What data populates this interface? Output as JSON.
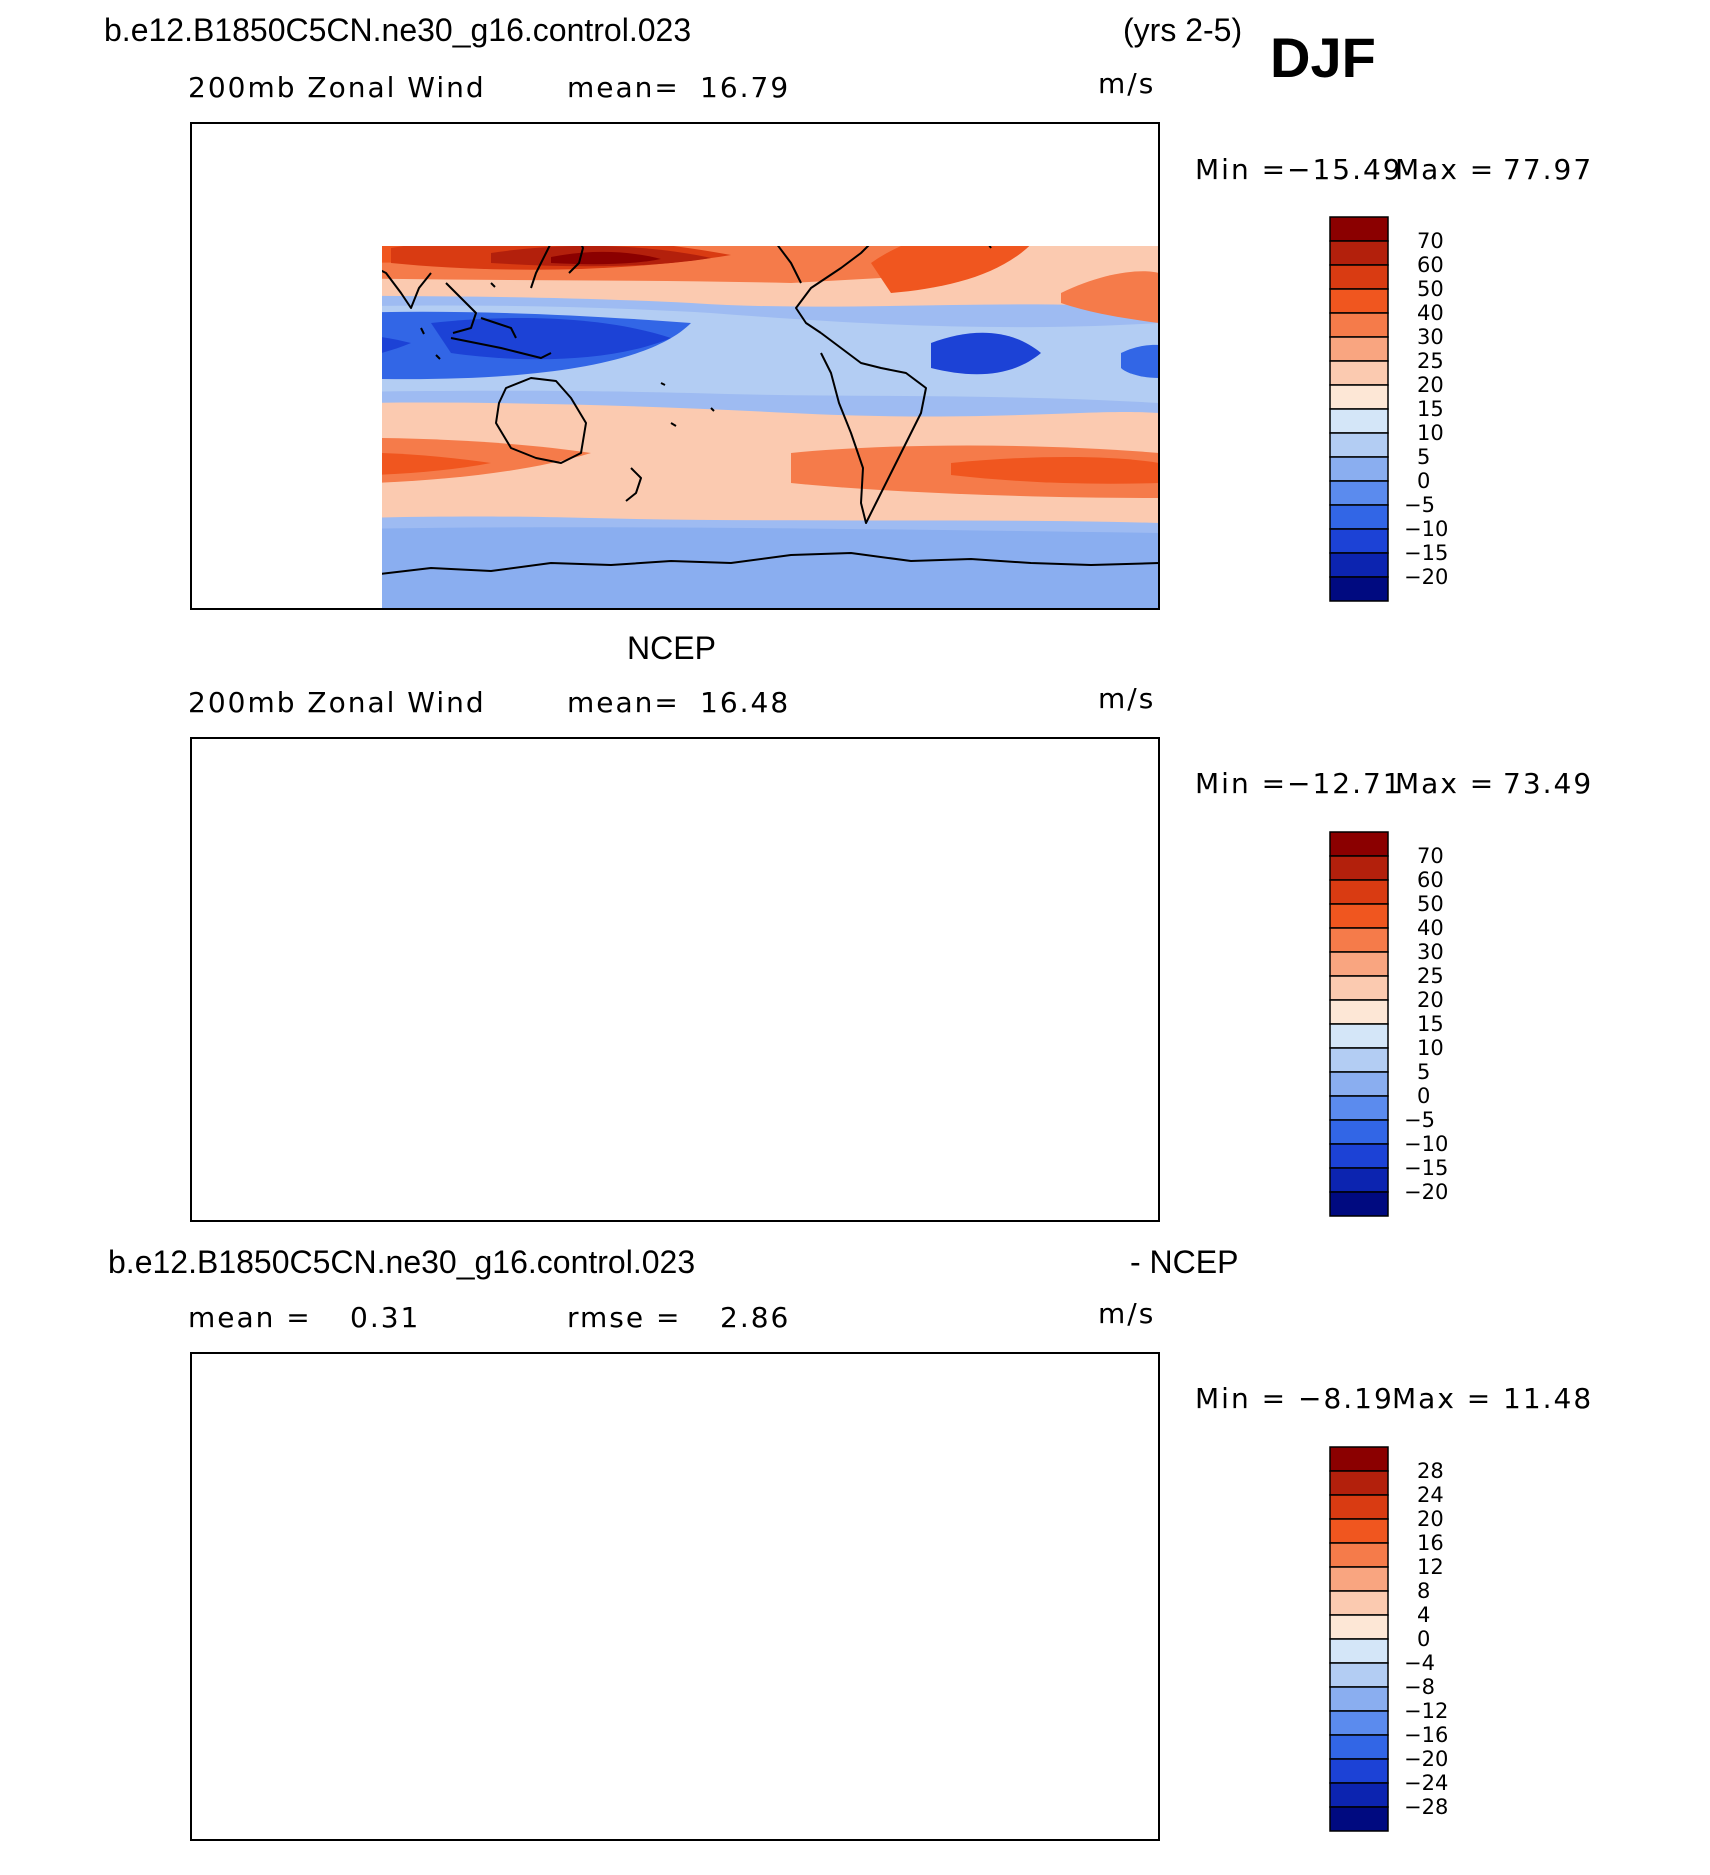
{
  "header": {
    "case_name": "b.e12.B1850C5CN.ne30_g16.control.023",
    "years": "(yrs 2-5)",
    "season": "DJF"
  },
  "panels": [
    {
      "title": "",
      "variable": "200mb Zonal Wind",
      "stat_label": "mean=",
      "stat_value": "16.79",
      "second_label": "",
      "second_value": "",
      "units": "m/s",
      "min_label": "Min =",
      "min_value": "−15.49",
      "max_label": "Max =",
      "max_value": "77.97",
      "levels": [
        "70",
        "60",
        "50",
        "40",
        "30",
        "25",
        "20",
        "15",
        "10",
        "5",
        "0",
        "−5",
        "−10",
        "−15",
        "−20"
      ]
    },
    {
      "title": "NCEP",
      "variable": "200mb Zonal Wind",
      "stat_label": "mean=",
      "stat_value": "16.48",
      "second_label": "",
      "second_value": "",
      "units": "m/s",
      "min_label": "Min =",
      "min_value": "−12.71",
      "max_label": "Max =",
      "max_value": "73.49",
      "levels": [
        "70",
        "60",
        "50",
        "40",
        "30",
        "25",
        "20",
        "15",
        "10",
        "5",
        "0",
        "−5",
        "−10",
        "−15",
        "−20"
      ]
    },
    {
      "title": "b.e12.B1850C5CN.ne30_g16.control.023",
      "title_suffix": "- NCEP",
      "variable": "",
      "stat_label": "mean =",
      "stat_value": "0.31",
      "second_label": "rmse =",
      "second_value": "2.86",
      "units": "m/s",
      "min_label": "Min =",
      "min_value": "−8.19",
      "max_label": "Max =",
      "max_value": "11.48",
      "levels": [
        "28",
        "24",
        "20",
        "16",
        "12",
        "8",
        "4",
        "0",
        "−4",
        "−8",
        "−12",
        "−16",
        "−20",
        "−24",
        "−28"
      ]
    }
  ],
  "colorbar_colors": [
    "#8b0000",
    "#b3200c",
    "#d93b12",
    "#f0561f",
    "#f57b4a",
    "#f9a580",
    "#fbcab0",
    "#fde7d6",
    "#d4e6f8",
    "#b3cdf3",
    "#8aaef0",
    "#5b8bee",
    "#3266e6",
    "#1c42d6",
    "#0c24b0",
    "#000a80"
  ],
  "map_colors": {
    "strong_pos": "#c4280f",
    "pos": "#ee6a3a",
    "weak_pos": "#f9b898",
    "near_pos": "#fde7d6",
    "near_neg": "#d4e6f8",
    "neg": "#9ebbf2",
    "strong_neg": "#4f7ee8",
    "very_neg": "#1f4fd8"
  }
}
